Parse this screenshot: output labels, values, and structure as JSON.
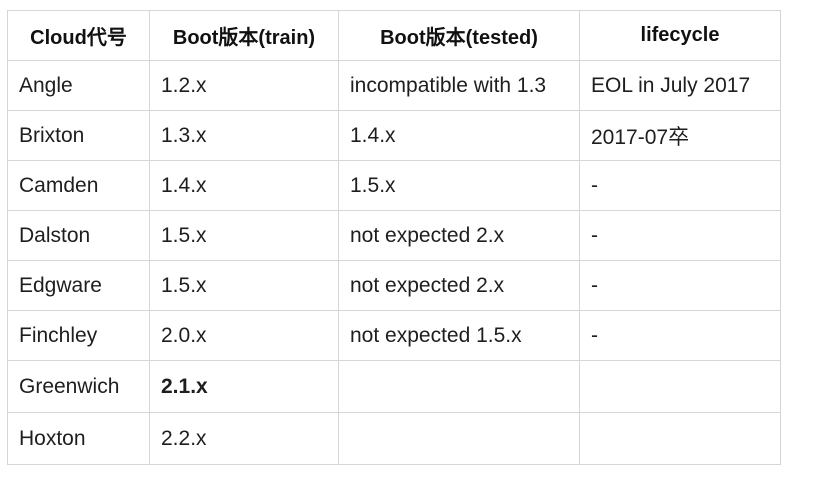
{
  "table": {
    "headers": [
      "Cloud代号",
      "Boot版本(train)",
      "Boot版本(tested)",
      "lifecycle"
    ],
    "rows": [
      {
        "name": "Angle",
        "train": "1.2.x",
        "tested": "incompatible with 1.3",
        "lifecycle": "EOL in July 2017"
      },
      {
        "name": "Brixton",
        "train": "1.3.x",
        "tested": "1.4.x",
        "lifecycle": "2017-07卒"
      },
      {
        "name": "Camden",
        "train": "1.4.x",
        "tested": "1.5.x",
        "lifecycle": "-"
      },
      {
        "name": "Dalston",
        "train": "1.5.x",
        "tested": "not expected 2.x",
        "lifecycle": "-"
      },
      {
        "name": "Edgware",
        "train": "1.5.x",
        "tested": "not expected 2.x",
        "lifecycle": "-"
      },
      {
        "name": "Finchley",
        "train": "2.0.x",
        "tested": "not expected 1.5.x",
        "lifecycle": "-"
      },
      {
        "name": "Greenwich",
        "train": "2.1.x",
        "tested": "",
        "lifecycle": ""
      },
      {
        "name": "Hoxton",
        "train": "2.2.x",
        "tested": "",
        "lifecycle": ""
      }
    ]
  }
}
